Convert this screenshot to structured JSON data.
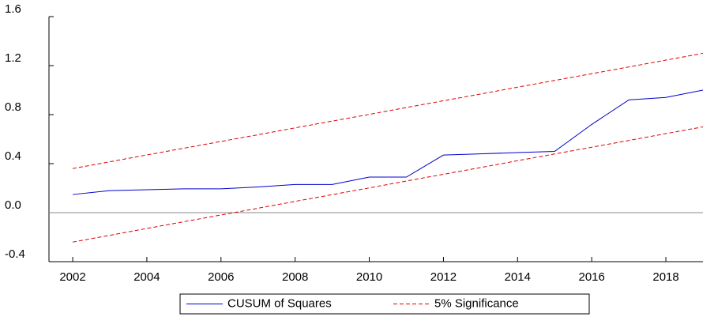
{
  "chart_data": {
    "type": "line",
    "x": [
      2002,
      2003,
      2004,
      2005,
      2006,
      2007,
      2008,
      2009,
      2010,
      2011,
      2012,
      2013,
      2014,
      2015,
      2016,
      2017,
      2018,
      2019
    ],
    "series": [
      {
        "name": "CUSUM of Squares",
        "color": "#0000cc",
        "dash": false,
        "values": [
          0.148,
          0.18,
          0.187,
          0.194,
          0.194,
          0.21,
          0.23,
          0.23,
          0.29,
          0.29,
          0.47,
          0.48,
          0.49,
          0.5,
          0.72,
          0.92,
          0.94,
          1.0
        ]
      },
      {
        "name": "5% Significance",
        "color": "#e00000",
        "dash": true,
        "values": [
          0.36,
          0.415,
          0.471,
          0.526,
          0.581,
          0.636,
          0.692,
          0.747,
          0.802,
          0.858,
          0.913,
          0.968,
          1.024,
          1.079,
          1.134,
          1.189,
          1.245,
          1.3
        ]
      },
      {
        "color": "#e00000",
        "dash": true,
        "values": [
          -0.24,
          -0.185,
          -0.129,
          -0.074,
          -0.019,
          0.036,
          0.092,
          0.147,
          0.202,
          0.258,
          0.313,
          0.368,
          0.424,
          0.479,
          0.534,
          0.589,
          0.645,
          0.7
        ]
      }
    ],
    "xlim": [
      2001.36,
      2019
    ],
    "xticks": [
      2002,
      2004,
      2006,
      2008,
      2010,
      2012,
      2014,
      2016,
      2018
    ],
    "ylim": [
      -0.4,
      1.6
    ],
    "yticks": [
      -0.4,
      {
        "value": 0,
        "label": "0.0"
      },
      0.4,
      0.8,
      1.2,
      1.6
    ],
    "zero_line": true,
    "legend": "bottom"
  }
}
